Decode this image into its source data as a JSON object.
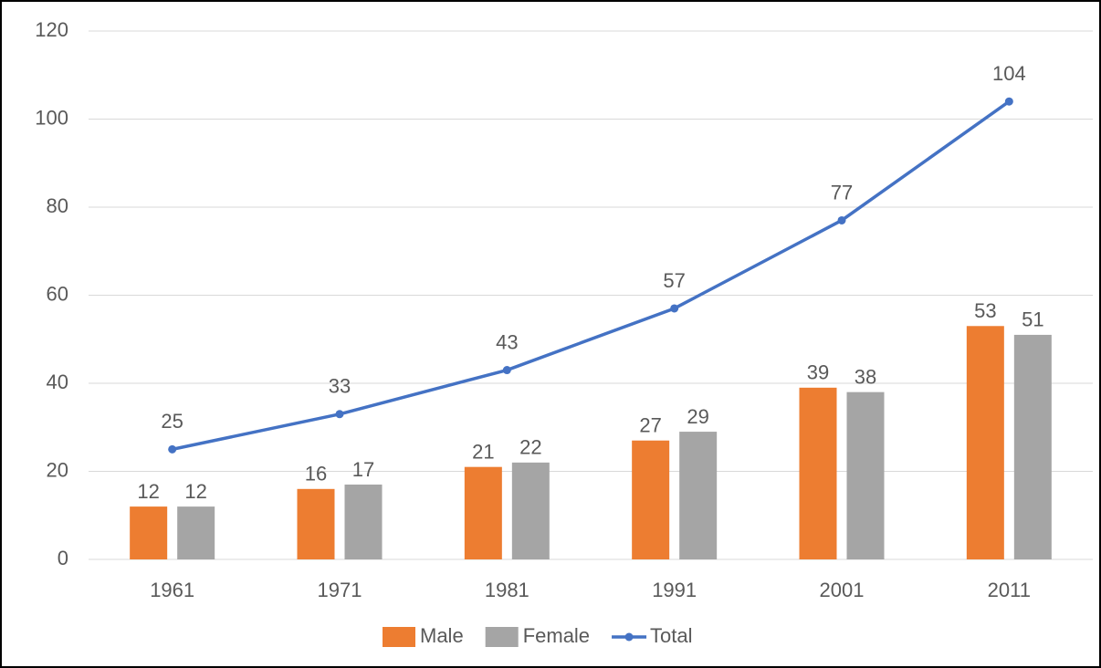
{
  "chart_data": {
    "type": "bar",
    "categories": [
      "1961",
      "1971",
      "1981",
      "1991",
      "2001",
      "2011"
    ],
    "series": [
      {
        "name": "Male",
        "color": "#ed7d31",
        "values": [
          12,
          16,
          21,
          27,
          39,
          53
        ]
      },
      {
        "name": "Female",
        "color": "#a5a5a5",
        "values": [
          12,
          17,
          22,
          29,
          38,
          51
        ]
      },
      {
        "name": "Total",
        "color": "#4472c4",
        "type": "line",
        "values": [
          25,
          33,
          43,
          57,
          77,
          104
        ]
      }
    ],
    "ylim": [
      0,
      120
    ],
    "yticks": [
      0,
      20,
      40,
      60,
      80,
      100,
      120
    ],
    "grid": true,
    "legend": "bottom"
  }
}
